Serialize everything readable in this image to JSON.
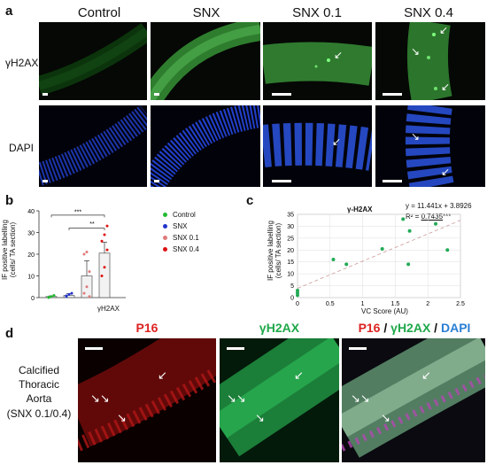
{
  "panel_a": {
    "letter": "a",
    "columns": [
      "Control",
      "SNX",
      "SNX 0.1",
      "SNX 0.4"
    ],
    "rows": [
      "γH2AX",
      "DAPI"
    ]
  },
  "panel_b": {
    "letter": "b",
    "ylabel": "IF positive labelling\n(cells/ TA section)",
    "xlabel": "γH2AX",
    "sig_top": "***",
    "sig_mid": "**",
    "legend": [
      {
        "name": "Control",
        "color": "#22bb33"
      },
      {
        "name": "SNX",
        "color": "#2233cc"
      },
      {
        "name": "SNX 0.1",
        "color": "#e07a7a"
      },
      {
        "name": "SNX 0.4",
        "color": "#dd1111"
      }
    ]
  },
  "panel_c": {
    "letter": "c",
    "title": "γ-H2AX",
    "equation": "y = 11.441x + 3.8926",
    "r2_prefix": "R² = ",
    "r2_value": "0.7435",
    "r2_suffix": "***",
    "xlabel": "VC Score (AU)",
    "ylabel": "IF positive labelling\n(cells/ TA section)"
  },
  "panel_d": {
    "letter": "d",
    "titles": [
      "P16",
      "γH2AX"
    ],
    "merge_title": {
      "p16": "P16",
      "sep1": " / ",
      "h2ax": "γH2AX",
      "sep2": " / ",
      "dapi": "DAPI"
    },
    "side_label": [
      "Calcified",
      "Thoracic",
      "Aorta",
      "(SNX 0.1/0.4)"
    ]
  },
  "chart_data": [
    {
      "type": "bar",
      "categories": [
        "Control",
        "SNX",
        "SNX 0.1",
        "SNX 0.4"
      ],
      "values": [
        0.5,
        1,
        10,
        20.5
      ],
      "errors": [
        0.3,
        0.8,
        7,
        5
      ],
      "xlabel": "γH2AX",
      "ylabel": "IF positive labelling (cells/ TA section)",
      "ylim": [
        0,
        40
      ],
      "yticks": [
        0,
        10,
        20,
        30,
        40
      ],
      "points": {
        "Control": [
          0,
          0.5,
          1,
          0.2
        ],
        "SNX": [
          0.5,
          1.5,
          2,
          0.8
        ],
        "SNX 0.1": [
          2,
          5,
          12,
          20,
          21,
          0.5
        ],
        "SNX 0.4": [
          10,
          14,
          22,
          26,
          29,
          33
        ]
      }
    },
    {
      "type": "scatter",
      "title": "γ-H2AX",
      "xlabel": "VC Score (AU)",
      "ylabel": "IF positive labelling (cells/ TA section)",
      "xlim": [
        0,
        2.5
      ],
      "ylim": [
        0,
        35
      ],
      "xticks": [
        0,
        0.5,
        1,
        1.5,
        2,
        2.5
      ],
      "yticks": [
        0,
        5,
        10,
        15,
        20,
        25,
        30,
        35
      ],
      "x": [
        0,
        0,
        0,
        0.55,
        0.75,
        1.3,
        1.62,
        1.7,
        1.72,
        2.12,
        2.3
      ],
      "y": [
        1,
        2,
        3,
        16,
        14,
        20.5,
        33,
        14,
        28,
        31,
        20
      ],
      "trend": {
        "slope": 11.441,
        "intercept": 3.8926
      }
    }
  ]
}
